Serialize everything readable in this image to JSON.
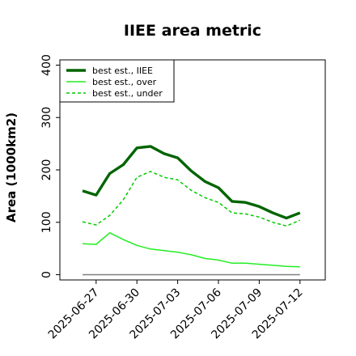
{
  "chart_data": {
    "type": "line",
    "title": "IIEE area metric",
    "xlabel": "",
    "ylabel": "Area (1000km2)",
    "ylim": [
      -10,
      410
    ],
    "yticks": [
      0,
      100,
      200,
      300,
      400
    ],
    "x": [
      "2025-06-26",
      "2025-06-27",
      "2025-06-28",
      "2025-06-29",
      "2025-06-30",
      "2025-07-01",
      "2025-07-02",
      "2025-07-03",
      "2025-07-04",
      "2025-07-05",
      "2025-07-06",
      "2025-07-07",
      "2025-07-08",
      "2025-07-09",
      "2025-07-10",
      "2025-07-11",
      "2025-07-12"
    ],
    "xtick_labels": [
      "2025-06-27",
      "2025-06-30",
      "2025-07-03",
      "2025-07-06",
      "2025-07-09",
      "2025-07-12"
    ],
    "xtick_index": [
      1,
      4,
      7,
      10,
      13,
      16
    ],
    "grid": false,
    "legend_position": "top-left",
    "series": [
      {
        "name": "best est., IIEE",
        "color": "#006400",
        "style": "solid",
        "width": "thick",
        "values": [
          160,
          152,
          193,
          210,
          242,
          245,
          231,
          223,
          198,
          178,
          166,
          140,
          138,
          130,
          118,
          108,
          118
        ]
      },
      {
        "name": "best est., over",
        "color": "#22ee22",
        "style": "solid",
        "width": "thin",
        "values": [
          59,
          58,
          80,
          67,
          56,
          49,
          46,
          43,
          38,
          31,
          28,
          22,
          22,
          20,
          18,
          16,
          15
        ]
      },
      {
        "name": "best est., under",
        "color": "#00cc00",
        "style": "dashed",
        "width": "thin",
        "values": [
          101,
          95,
          113,
          143,
          186,
          197,
          186,
          181,
          161,
          147,
          138,
          118,
          116,
          110,
          100,
          93,
          104
        ]
      },
      {
        "name": "",
        "color": "#808080",
        "style": "solid",
        "width": "thin",
        "values": [
          0,
          0,
          0,
          0,
          0,
          0,
          0,
          0,
          0,
          0,
          0,
          0,
          0,
          0,
          0,
          0,
          0
        ]
      }
    ]
  }
}
